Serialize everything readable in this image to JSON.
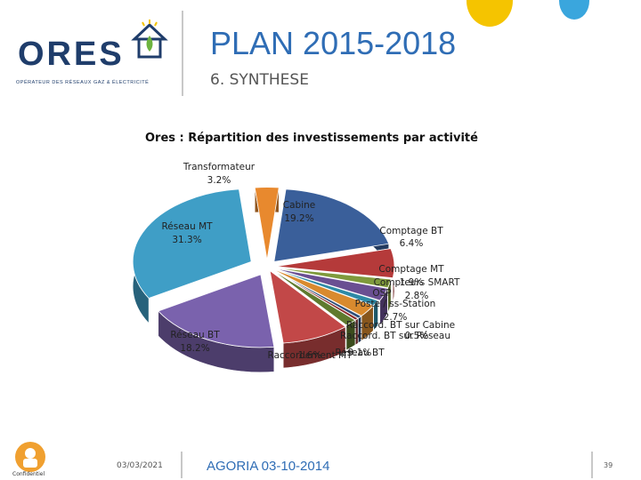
{
  "header": {
    "logo_text": "ORES",
    "logo_subtitle": "OPÉRATEUR DES RÉSEAUX GAZ & ÉLECTRICITÉ",
    "title": "PLAN 2015-2018",
    "subtitle": "6. SYNTHESE"
  },
  "footer": {
    "date": "03/03/2021",
    "event": "AGORIA 03-10-2014",
    "page_number": "39",
    "logo_caption": "Confidentiel"
  },
  "colors": {
    "title_blue": "#2f6db5",
    "logo_navy": "#1f3d6b",
    "accent_yellow": "#f5c400",
    "accent_blue": "#3aa6dd"
  },
  "chart_data": {
    "type": "pie",
    "title": "Ores : Répartition des investissements par activité",
    "style": "3d-exploded",
    "slices": [
      {
        "label": "Cabine",
        "value": 19.2,
        "display": "19.2%",
        "color": "#3a5f9a"
      },
      {
        "label": "Comptage BT",
        "value": 6.4,
        "display": "6.4%",
        "color": "#b53a3a"
      },
      {
        "label": "Comptage MT",
        "value": 1.9,
        "display": "1.9%",
        "color": "#7f9a3c"
      },
      {
        "label": "Compteurs SMART",
        "value": 2.8,
        "display": "2.8%",
        "color": "#6a4f92"
      },
      {
        "label": "OSP",
        "value": 1.2,
        "display": "",
        "color": "#2e8aa6"
      },
      {
        "label": "Poste / ss-Station",
        "value": 2.7,
        "display": "2.7%",
        "color": "#d98a2e"
      },
      {
        "label": "Raccord. BT sur Cabine",
        "value": 0.6,
        "display": "",
        "color": "#2f4f7a"
      },
      {
        "label": "Raccord. BT sur Réseau",
        "value": 0.5,
        "display": "0.5%",
        "color": "#8c2e2e"
      },
      {
        "label": "Raccordement MT",
        "value": 1.6,
        "display": "1.6%",
        "color": "#5f7a2e"
      },
      {
        "label": "Réseau BT",
        "value": 9.1,
        "display": "9.1%",
        "color": "#c24848"
      },
      {
        "label": "Réseau BT",
        "value": 18.2,
        "display": "18.2%",
        "color": "#7a62ad"
      },
      {
        "label": "Réseau MT",
        "value": 31.3,
        "display": "31.3%",
        "color": "#3f9ec6"
      },
      {
        "label": "Transformateur",
        "value": 3.2,
        "display": "3.2%",
        "color": "#e8892e"
      }
    ]
  }
}
